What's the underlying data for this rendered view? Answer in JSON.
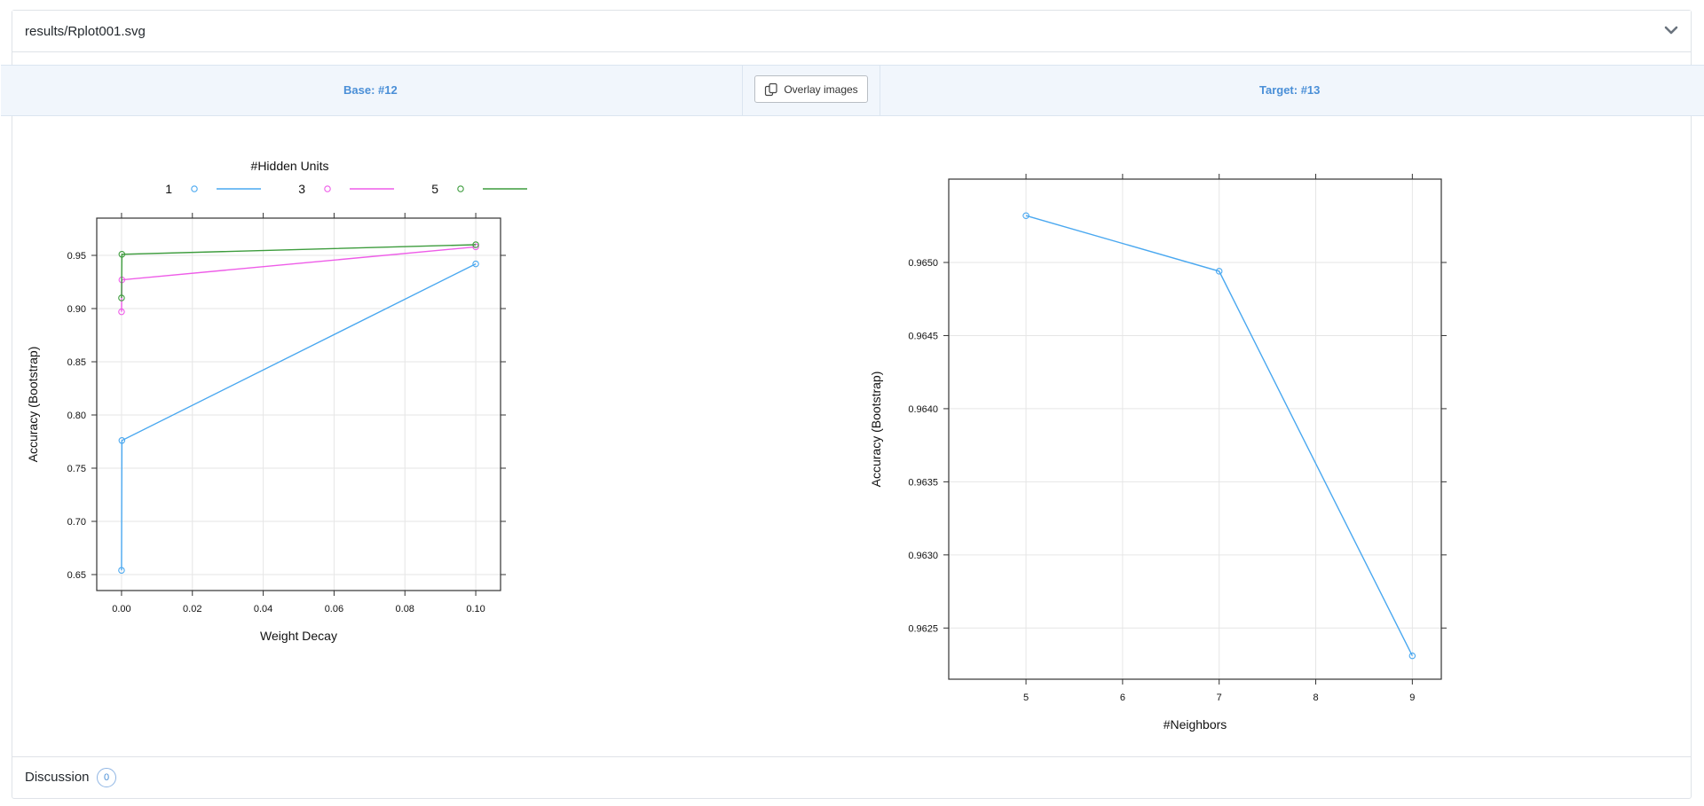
{
  "file_header": {
    "filename": "results/Rplot001.svg"
  },
  "compare_bar": {
    "base_label": "Base: #12",
    "target_label": "Target: #13",
    "overlay_button_label": "Overlay images"
  },
  "discussion": {
    "label": "Discussion",
    "count": "0"
  },
  "chart_data": [
    {
      "type": "line",
      "title": "",
      "xlabel": "Weight Decay",
      "ylabel": "Accuracy (Bootstrap)",
      "legend_title": "#Hidden Units",
      "legend_position": "top",
      "grid": true,
      "xlim": [
        -0.007,
        0.107
      ],
      "ylim": [
        0.635,
        0.985
      ],
      "x_ticks": [
        "0.00",
        "0.02",
        "0.04",
        "0.06",
        "0.08",
        "0.10"
      ],
      "y_ticks": [
        "0.65",
        "0.70",
        "0.75",
        "0.80",
        "0.85",
        "0.90",
        "0.95"
      ],
      "series": [
        {
          "name": "1",
          "color": "#4aa8f0",
          "x": [
            0,
            0.0001,
            0.1
          ],
          "y": [
            0.654,
            0.776,
            0.942
          ]
        },
        {
          "name": "3",
          "color": "#ee5ce8",
          "x": [
            0,
            0.0001,
            0.1
          ],
          "y": [
            0.897,
            0.927,
            0.958
          ]
        },
        {
          "name": "5",
          "color": "#3d9c3d",
          "x": [
            0,
            0.0001,
            0.1
          ],
          "y": [
            0.91,
            0.951,
            0.96
          ]
        }
      ]
    },
    {
      "type": "line",
      "title": "",
      "xlabel": "#Neighbors",
      "ylabel": "Accuracy (Bootstrap)",
      "grid": true,
      "xlim": [
        4.2,
        9.3
      ],
      "ylim": [
        0.96215,
        0.96557
      ],
      "x_ticks": [
        "5",
        "6",
        "7",
        "8",
        "9"
      ],
      "y_ticks": [
        "0.9625",
        "0.9630",
        "0.9635",
        "0.9640",
        "0.9645",
        "0.9650"
      ],
      "series": [
        {
          "color": "#4aa8f0",
          "x": [
            5,
            7,
            9
          ],
          "y": [
            0.96532,
            0.96494,
            0.96231
          ]
        }
      ]
    }
  ]
}
